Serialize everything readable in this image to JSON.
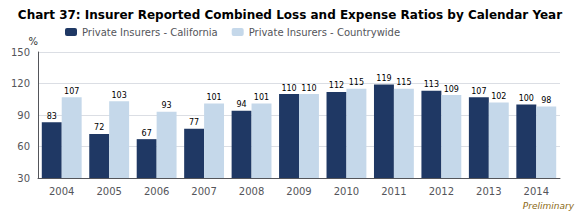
{
  "chart_data": {
    "type": "bar",
    "title": "Chart 37: Insurer Reported Combined Loss and Expense Ratios by Calendar Year",
    "categories": [
      "2004",
      "2005",
      "2006",
      "2007",
      "2008",
      "2009",
      "2010",
      "2011",
      "2012",
      "2013",
      "2014"
    ],
    "series": [
      {
        "name": "Private Insurers - California",
        "color": "#1F3864",
        "values": [
          83,
          72,
          67,
          77,
          94,
          110,
          112,
          119,
          113,
          107,
          100
        ]
      },
      {
        "name": "Private Insurers - Countrywide",
        "color": "#C5D8EA",
        "values": [
          107,
          103,
          93,
          101,
          101,
          110,
          115,
          115,
          109,
          102,
          98
        ]
      }
    ],
    "ylabel": "%",
    "ylim": [
      30,
      150
    ],
    "yticks": [
      30,
      60,
      90,
      120,
      150
    ],
    "grid": true,
    "data_labels": true,
    "legend": "upper left",
    "annotations": [
      {
        "text": "Preliminary",
        "color": "#8B6914"
      }
    ]
  }
}
